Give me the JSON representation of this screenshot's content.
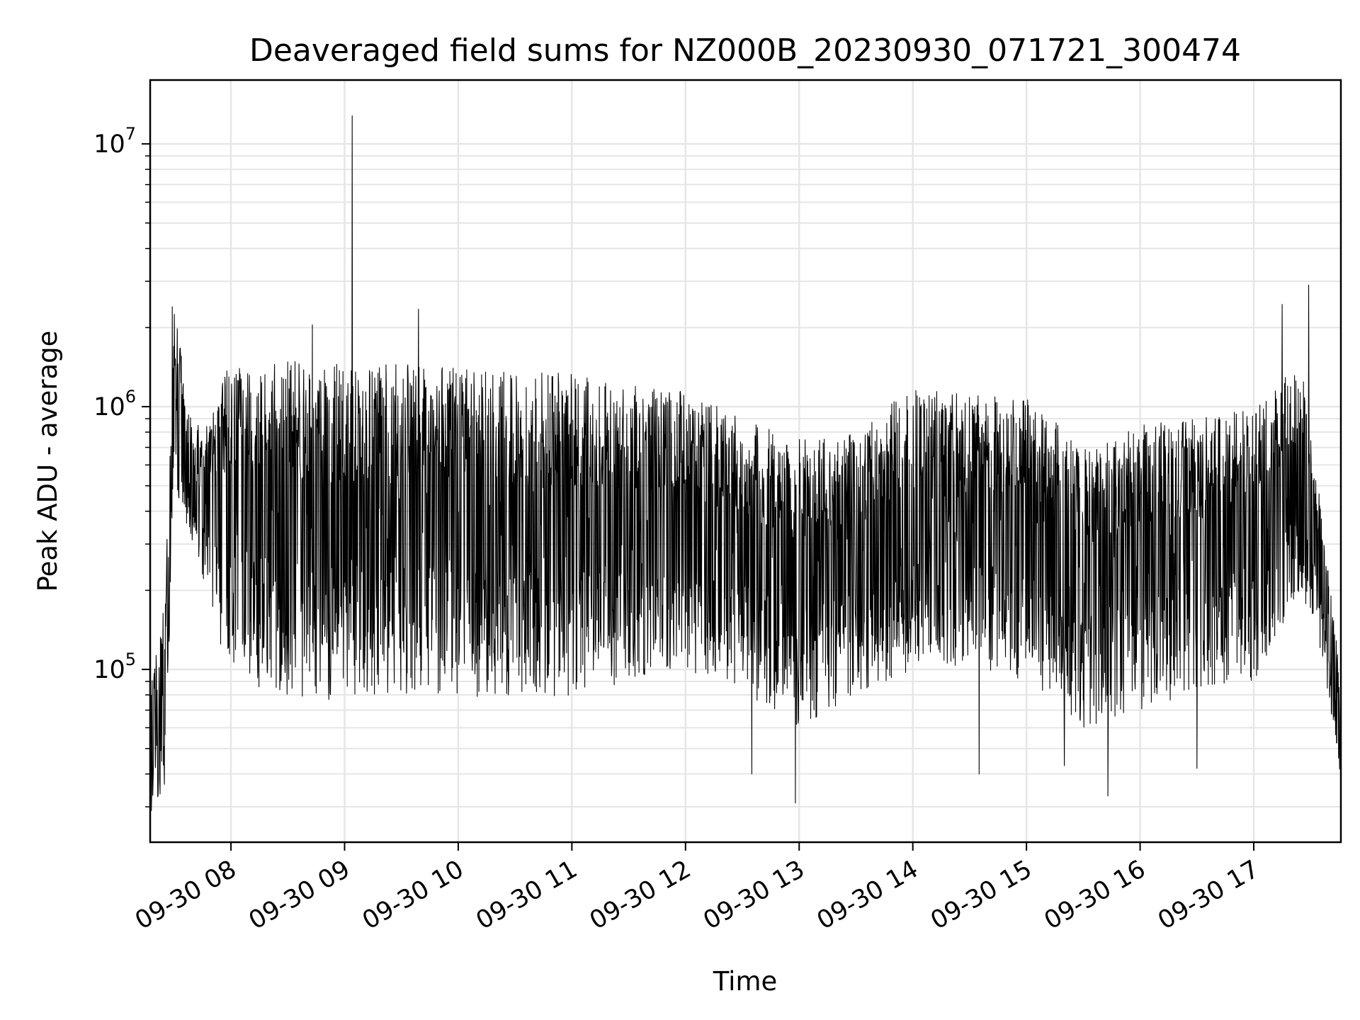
{
  "chart_data": {
    "type": "line",
    "title": "Deaveraged field sums for NZ000B_20230930_071721_300474",
    "xlabel": "Time",
    "ylabel": "Peak ADU - average",
    "yscale": "log",
    "ylim": [
      22000,
      17500000
    ],
    "xlim": [
      "2023-09-30 07:17:21",
      "2023-09-30 17:46:00"
    ],
    "x_tick_labels": [
      "09-30 08",
      "09-30 09",
      "09-30 10",
      "09-30 11",
      "09-30 12",
      "09-30 13",
      "09-30 14",
      "09-30 15",
      "09-30 16",
      "09-30 17"
    ],
    "y_tick_labels": [
      {
        "value": 100000,
        "base": "10",
        "exp": "5"
      },
      {
        "value": 1000000,
        "base": "10",
        "exp": "6"
      },
      {
        "value": 10000000,
        "base": "10",
        "exp": "7"
      }
    ],
    "grid": true,
    "line_color": "#000000",
    "grid_color": "#e6e6e6",
    "series": [
      {
        "envelope": [
          {
            "t": "07:17",
            "low": 30000,
            "high": 80000
          },
          {
            "t": "07:25",
            "low": 35000,
            "high": 180000
          },
          {
            "t": "07:30",
            "low": 500000,
            "high": 2400000
          },
          {
            "t": "07:40",
            "low": 300000,
            "high": 800000
          },
          {
            "t": "07:50",
            "low": 150000,
            "high": 1000000
          },
          {
            "t": "08:00",
            "low": 90000,
            "high": 1500000
          },
          {
            "t": "08:30",
            "low": 80000,
            "high": 1500000
          },
          {
            "t": "09:00",
            "low": 75000,
            "high": 1450000
          },
          {
            "t": "09:30",
            "low": 80000,
            "high": 1450000
          },
          {
            "t": "10:00",
            "low": 80000,
            "high": 1400000
          },
          {
            "t": "10:30",
            "low": 75000,
            "high": 1350000
          },
          {
            "t": "11:00",
            "low": 80000,
            "high": 1350000
          },
          {
            "t": "11:30",
            "low": 90000,
            "high": 1200000
          },
          {
            "t": "12:00",
            "low": 100000,
            "high": 1150000
          },
          {
            "t": "12:30",
            "low": 80000,
            "high": 900000
          },
          {
            "t": "13:00",
            "low": 60000,
            "high": 750000
          },
          {
            "t": "13:30",
            "low": 80000,
            "high": 800000
          },
          {
            "t": "14:00",
            "low": 100000,
            "high": 1200000
          },
          {
            "t": "14:30",
            "low": 100000,
            "high": 1150000
          },
          {
            "t": "15:00",
            "low": 90000,
            "high": 1100000
          },
          {
            "t": "15:30",
            "low": 60000,
            "high": 700000
          },
          {
            "t": "16:00",
            "low": 70000,
            "high": 850000
          },
          {
            "t": "16:30",
            "low": 80000,
            "high": 900000
          },
          {
            "t": "17:00",
            "low": 90000,
            "high": 1000000
          },
          {
            "t": "17:25",
            "low": 200000,
            "high": 1500000
          },
          {
            "t": "17:35",
            "low": 120000,
            "high": 450000
          },
          {
            "t": "17:46",
            "low": 38000,
            "high": 90000
          }
        ],
        "spikes": [
          {
            "t": "09:04",
            "value": 12800000
          },
          {
            "t": "09:39",
            "value": 2350000
          },
          {
            "t": "08:43",
            "value": 2050000
          },
          {
            "t": "17:29",
            "value": 2900000
          },
          {
            "t": "17:15",
            "value": 2450000
          },
          {
            "t": "07:29",
            "value": 2400000
          },
          {
            "t": "12:58",
            "value": 31000
          },
          {
            "t": "15:43",
            "value": 33000
          },
          {
            "t": "07:18",
            "value": 29000
          },
          {
            "t": "12:35",
            "value": 40000
          },
          {
            "t": "14:35",
            "value": 40000
          },
          {
            "t": "16:30",
            "value": 42000
          },
          {
            "t": "15:20",
            "value": 43000
          }
        ]
      }
    ]
  }
}
